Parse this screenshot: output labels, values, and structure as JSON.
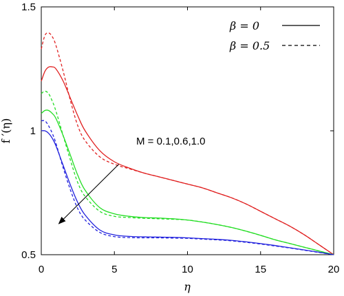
{
  "chart_data": {
    "type": "line",
    "title": "",
    "xlabel": "η",
    "ylabel": "f ′(η)",
    "xlim": [
      0,
      20
    ],
    "ylim": [
      0.5,
      1.5
    ],
    "xticks": [
      0,
      5,
      10,
      15,
      20
    ],
    "xtick_labels": [
      "0",
      "5",
      "10",
      "15",
      "20"
    ],
    "yticks": [
      0.5,
      1,
      1.5
    ],
    "ytick_labels": [
      "0.5",
      "1",
      "1.5"
    ],
    "grid": false,
    "legend": {
      "position": "top-right",
      "entries": [
        {
          "label": "β = 0",
          "style": "solid"
        },
        {
          "label": "β = 0.5",
          "style": "dashed"
        }
      ]
    },
    "annotation": {
      "text": "M = 0.1,0.6,1.0",
      "arrow_from": [
        5.3,
        0.865
      ],
      "arrow_to": [
        1.2,
        0.625
      ]
    },
    "series": [
      {
        "color": "#e02020",
        "style": "solid",
        "x": [
          0,
          0.25,
          0.5,
          0.75,
          1,
          1.5,
          2,
          2.5,
          3,
          4,
          5,
          6,
          7,
          8,
          9,
          10,
          11,
          12,
          13,
          14,
          15,
          16,
          17,
          18,
          19,
          20
        ],
        "y": [
          1.2,
          1.24,
          1.257,
          1.258,
          1.25,
          1.2,
          1.13,
          1.06,
          1.0,
          0.92,
          0.875,
          0.85,
          0.83,
          0.815,
          0.8,
          0.785,
          0.77,
          0.75,
          0.73,
          0.705,
          0.675,
          0.645,
          0.615,
          0.58,
          0.54,
          0.5
        ]
      },
      {
        "color": "#e02020",
        "style": "dashed",
        "x": [
          0,
          0.25,
          0.5,
          0.75,
          1,
          1.5,
          2,
          2.5,
          3,
          4,
          5,
          6,
          7,
          8,
          9,
          10,
          11,
          12,
          13,
          14,
          15,
          16,
          17,
          18,
          19,
          20
        ],
        "y": [
          1.33,
          1.385,
          1.395,
          1.38,
          1.345,
          1.24,
          1.12,
          1.02,
          0.96,
          0.895,
          0.865,
          0.847,
          0.83,
          0.815,
          0.8,
          0.785,
          0.77,
          0.75,
          0.73,
          0.705,
          0.675,
          0.645,
          0.615,
          0.58,
          0.54,
          0.5
        ]
      },
      {
        "color": "#22dd22",
        "style": "solid",
        "x": [
          0,
          0.25,
          0.5,
          0.75,
          1,
          1.5,
          2,
          2.5,
          3,
          4,
          5,
          6,
          7,
          8,
          9,
          10,
          11,
          12,
          13,
          14,
          15,
          16,
          17,
          18,
          19,
          20
        ],
        "y": [
          1.07,
          1.082,
          1.082,
          1.07,
          1.05,
          0.98,
          0.9,
          0.82,
          0.76,
          0.69,
          0.665,
          0.655,
          0.65,
          0.648,
          0.645,
          0.64,
          0.632,
          0.622,
          0.61,
          0.595,
          0.578,
          0.56,
          0.545,
          0.53,
          0.515,
          0.5
        ]
      },
      {
        "color": "#22dd22",
        "style": "dashed",
        "x": [
          0,
          0.25,
          0.5,
          0.75,
          1,
          1.5,
          2,
          2.5,
          3,
          4,
          5,
          6,
          7,
          8,
          9,
          10,
          11,
          12,
          13,
          14,
          15,
          16,
          17,
          18,
          19,
          20
        ],
        "y": [
          1.15,
          1.16,
          1.15,
          1.12,
          1.08,
          0.98,
          0.88,
          0.79,
          0.735,
          0.675,
          0.655,
          0.65,
          0.647,
          0.645,
          0.643,
          0.64,
          0.632,
          0.622,
          0.61,
          0.595,
          0.578,
          0.56,
          0.545,
          0.53,
          0.515,
          0.5
        ]
      },
      {
        "color": "#2020dd",
        "style": "solid",
        "x": [
          0,
          0.25,
          0.5,
          0.75,
          1,
          1.5,
          2,
          2.5,
          3,
          4,
          5,
          6,
          7,
          8,
          9,
          10,
          11,
          12,
          13,
          14,
          15,
          16,
          17,
          18,
          19,
          20
        ],
        "y": [
          1.0,
          1.0,
          0.99,
          0.97,
          0.94,
          0.86,
          0.78,
          0.71,
          0.66,
          0.6,
          0.58,
          0.574,
          0.572,
          0.571,
          0.57,
          0.568,
          0.565,
          0.562,
          0.558,
          0.552,
          0.545,
          0.537,
          0.528,
          0.519,
          0.51,
          0.5
        ]
      },
      {
        "color": "#2020dd",
        "style": "dashed",
        "x": [
          0,
          0.25,
          0.5,
          0.75,
          1,
          1.5,
          2,
          2.5,
          3,
          4,
          5,
          6,
          7,
          8,
          9,
          10,
          11,
          12,
          13,
          14,
          15,
          16,
          17,
          18,
          19,
          20
        ],
        "y": [
          1.04,
          1.04,
          1.02,
          0.99,
          0.95,
          0.85,
          0.76,
          0.685,
          0.64,
          0.59,
          0.573,
          0.569,
          0.568,
          0.568,
          0.567,
          0.566,
          0.563,
          0.56,
          0.556,
          0.55,
          0.543,
          0.535,
          0.527,
          0.518,
          0.509,
          0.5
        ]
      }
    ]
  }
}
